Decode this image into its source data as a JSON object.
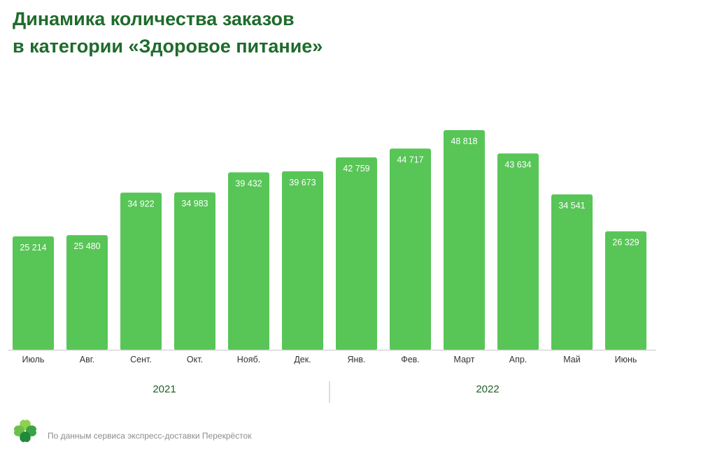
{
  "title": {
    "line1": "Динамика количества заказов",
    "line2": "в категории «Здоровое питание»"
  },
  "source_note": "По данным сервиса экспресс-доставки Перекрёсток",
  "logo_icon": "clover-logo-icon",
  "colors": {
    "bar": "#58c557",
    "title": "#1f6b2c",
    "logo_light": "#8fd14f",
    "logo_dark": "#1f8a3a"
  },
  "chart_data": {
    "type": "bar",
    "title": "Динамика количества заказов в категории «Здоровое питание»",
    "xlabel": "",
    "ylabel": "",
    "grid": false,
    "legend": "none",
    "categories": [
      "Июль",
      "Авг.",
      "Сент.",
      "Окт.",
      "Нояб.",
      "Дек.",
      "Янв.",
      "Фев.",
      "Март",
      "Апр.",
      "Май",
      "Июнь"
    ],
    "values": [
      25214,
      25480,
      34922,
      34983,
      39432,
      39673,
      42759,
      44717,
      48818,
      43634,
      34541,
      26329
    ],
    "value_labels": [
      "25 214",
      "25 480",
      "34 922",
      "34 983",
      "39 432",
      "39 673",
      "42 759",
      "44 717",
      "48 818",
      "43 634",
      "34 541",
      "26 329"
    ],
    "ylim": [
      0,
      48818
    ],
    "groups": [
      {
        "label": "2021",
        "start": 0,
        "end": 5
      },
      {
        "label": "2022",
        "start": 6,
        "end": 11
      }
    ]
  }
}
